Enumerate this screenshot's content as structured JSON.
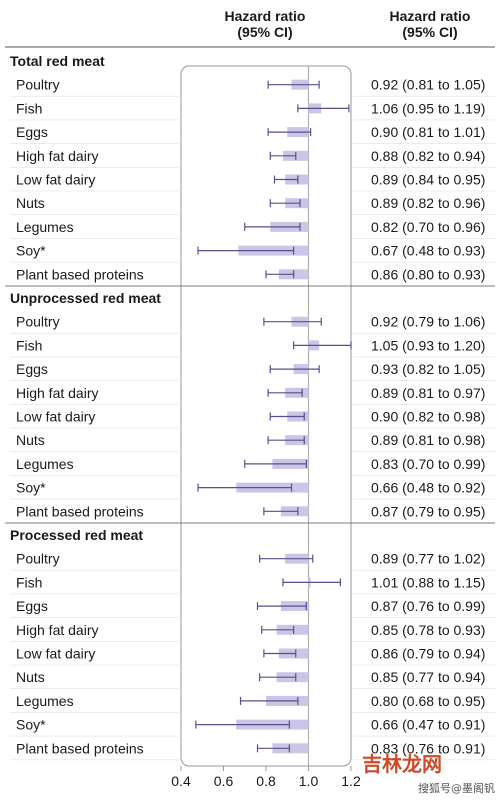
{
  "header": {
    "plot_line1": "Hazard ratio",
    "plot_line2": "(95% CI)",
    "values_line1": "Hazard ratio",
    "values_line2": "(95% CI)"
  },
  "colors": {
    "bar": "#c9c6e6",
    "ci_line": "#5a4f8c",
    "reference_line": "#b0b0b0",
    "frame": "#999999",
    "group_rule": "#555555",
    "row_rule": "#e0e0e0"
  },
  "watermark": {
    "main": "吉林龙网",
    "sub": "搜狐号@墨阁钒"
  },
  "chart_data": {
    "type": "forest",
    "xlim": [
      0.4,
      1.2
    ],
    "xticks": [
      0.4,
      0.6,
      0.8,
      1.0,
      1.2
    ],
    "xtick_labels": [
      "0.4",
      "0.6",
      "0.8",
      "1.0",
      "1.2"
    ],
    "reference_value": 1.0,
    "groups": [
      {
        "name": "Total red meat",
        "rows": [
          {
            "label": "Poultry",
            "hr": 0.92,
            "low": 0.81,
            "high": 1.05,
            "text": "0.92 (0.81 to 1.05)"
          },
          {
            "label": "Fish",
            "hr": 1.06,
            "low": 0.95,
            "high": 1.19,
            "text": "1.06 (0.95 to 1.19)"
          },
          {
            "label": "Eggs",
            "hr": 0.9,
            "low": 0.81,
            "high": 1.01,
            "text": "0.90 (0.81 to 1.01)"
          },
          {
            "label": "High fat dairy",
            "hr": 0.88,
            "low": 0.82,
            "high": 0.94,
            "text": "0.88 (0.82 to 0.94)"
          },
          {
            "label": "Low fat dairy",
            "hr": 0.89,
            "low": 0.84,
            "high": 0.95,
            "text": "0.89 (0.84 to 0.95)"
          },
          {
            "label": "Nuts",
            "hr": 0.89,
            "low": 0.82,
            "high": 0.96,
            "text": "0.89 (0.82 to 0.96)"
          },
          {
            "label": "Legumes",
            "hr": 0.82,
            "low": 0.7,
            "high": 0.96,
            "text": "0.82 (0.70 to 0.96)"
          },
          {
            "label": "Soy*",
            "hr": 0.67,
            "low": 0.48,
            "high": 0.93,
            "text": "0.67 (0.48 to 0.93)"
          },
          {
            "label": "Plant based proteins",
            "hr": 0.86,
            "low": 0.8,
            "high": 0.93,
            "text": "0.86 (0.80 to 0.93)"
          }
        ]
      },
      {
        "name": "Unprocessed red meat",
        "rows": [
          {
            "label": "Poultry",
            "hr": 0.92,
            "low": 0.79,
            "high": 1.06,
            "text": "0.92 (0.79 to 1.06)"
          },
          {
            "label": "Fish",
            "hr": 1.05,
            "low": 0.93,
            "high": 1.2,
            "text": "1.05 (0.93 to 1.20)"
          },
          {
            "label": "Eggs",
            "hr": 0.93,
            "low": 0.82,
            "high": 1.05,
            "text": "0.93 (0.82 to 1.05)"
          },
          {
            "label": "High fat dairy",
            "hr": 0.89,
            "low": 0.81,
            "high": 0.97,
            "text": "0.89 (0.81 to 0.97)"
          },
          {
            "label": "Low fat dairy",
            "hr": 0.9,
            "low": 0.82,
            "high": 0.98,
            "text": "0.90 (0.82 to 0.98)"
          },
          {
            "label": "Nuts",
            "hr": 0.89,
            "low": 0.81,
            "high": 0.98,
            "text": "0.89 (0.81 to 0.98)"
          },
          {
            "label": "Legumes",
            "hr": 0.83,
            "low": 0.7,
            "high": 0.99,
            "text": "0.83 (0.70 to 0.99)"
          },
          {
            "label": "Soy*",
            "hr": 0.66,
            "low": 0.48,
            "high": 0.92,
            "text": "0.66 (0.48 to 0.92)"
          },
          {
            "label": "Plant based proteins",
            "hr": 0.87,
            "low": 0.79,
            "high": 0.95,
            "text": "0.87 (0.79 to 0.95)"
          }
        ]
      },
      {
        "name": "Processed red meat",
        "rows": [
          {
            "label": "Poultry",
            "hr": 0.89,
            "low": 0.77,
            "high": 1.02,
            "text": "0.89 (0.77 to 1.02)"
          },
          {
            "label": "Fish",
            "hr": 1.01,
            "low": 0.88,
            "high": 1.15,
            "text": "1.01 (0.88 to 1.15)"
          },
          {
            "label": "Eggs",
            "hr": 0.87,
            "low": 0.76,
            "high": 0.99,
            "text": "0.87 (0.76 to 0.99)"
          },
          {
            "label": "High fat dairy",
            "hr": 0.85,
            "low": 0.78,
            "high": 0.93,
            "text": "0.85 (0.78 to 0.93)"
          },
          {
            "label": "Low fat dairy",
            "hr": 0.86,
            "low": 0.79,
            "high": 0.94,
            "text": "0.86 (0.79 to 0.94)"
          },
          {
            "label": "Nuts",
            "hr": 0.85,
            "low": 0.77,
            "high": 0.94,
            "text": "0.85 (0.77 to 0.94)"
          },
          {
            "label": "Legumes",
            "hr": 0.8,
            "low": 0.68,
            "high": 0.95,
            "text": "0.80 (0.68 to 0.95)"
          },
          {
            "label": "Soy*",
            "hr": 0.66,
            "low": 0.47,
            "high": 0.91,
            "text": "0.66 (0.47 to 0.91)"
          },
          {
            "label": "Plant based proteins",
            "hr": 0.83,
            "low": 0.76,
            "high": 0.91,
            "text": "0.83 (0.76 to 0.91)"
          }
        ]
      }
    ]
  }
}
